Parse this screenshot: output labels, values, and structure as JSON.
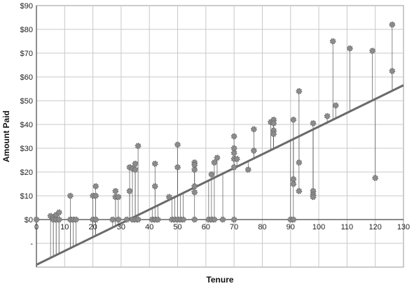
{
  "chart_data": {
    "type": "scatter",
    "title": "",
    "xlabel": "Tenure",
    "ylabel": "Amount Paid",
    "xlim": [
      0,
      130
    ],
    "ylim": [
      -20,
      90
    ],
    "x_ticks": [
      0,
      10,
      20,
      30,
      40,
      50,
      60,
      70,
      80,
      90,
      100,
      110,
      120,
      130
    ],
    "x_tick_labels": [
      "0",
      "10",
      "20",
      "30",
      "40",
      "50",
      "60",
      "70",
      "80",
      "90",
      "100",
      "110",
      "120",
      "130"
    ],
    "y_ticks": [
      -10,
      0,
      10,
      20,
      30,
      40,
      50,
      60,
      70,
      80,
      90
    ],
    "y_tick_labels": [
      "-",
      "$0",
      "$10",
      "$20",
      "$30",
      "$40",
      "$50",
      "$60",
      "$70",
      "$80",
      "$90"
    ],
    "grid": true,
    "legend": "none",
    "colors": {
      "points": "#8c8c8c",
      "trendline": "#6a6a6a",
      "residuals": "#555555",
      "grid": "#c8c8c8"
    },
    "trendline": {
      "x": [
        0,
        130
      ],
      "y": [
        -19,
        56.5
      ]
    },
    "points": [
      [
        0,
        0
      ],
      [
        5,
        1.5
      ],
      [
        6,
        1
      ],
      [
        7,
        2
      ],
      [
        8,
        3
      ],
      [
        6,
        0
      ],
      [
        7,
        0
      ],
      [
        8,
        0
      ],
      [
        12,
        0
      ],
      [
        13,
        0
      ],
      [
        12,
        10
      ],
      [
        14,
        0
      ],
      [
        20,
        0
      ],
      [
        20,
        10
      ],
      [
        21,
        10
      ],
      [
        21,
        14
      ],
      [
        21,
        0
      ],
      [
        27,
        0
      ],
      [
        28,
        12
      ],
      [
        28,
        9.5
      ],
      [
        29,
        9.5
      ],
      [
        29,
        0
      ],
      [
        32,
        0
      ],
      [
        33,
        22
      ],
      [
        33,
        12
      ],
      [
        34,
        21.5
      ],
      [
        34,
        0
      ],
      [
        35,
        23.5
      ],
      [
        35,
        21
      ],
      [
        35,
        0
      ],
      [
        36,
        31
      ],
      [
        36,
        0
      ],
      [
        41,
        0
      ],
      [
        42,
        14
      ],
      [
        42,
        23.5
      ],
      [
        42,
        0
      ],
      [
        43,
        0
      ],
      [
        47,
        9.5
      ],
      [
        48,
        0
      ],
      [
        49,
        0
      ],
      [
        50,
        22
      ],
      [
        50,
        31.5
      ],
      [
        50,
        0
      ],
      [
        51,
        0
      ],
      [
        52,
        0
      ],
      [
        56,
        24
      ],
      [
        56,
        23
      ],
      [
        56,
        21
      ],
      [
        56,
        14
      ],
      [
        56,
        11.5
      ],
      [
        56,
        0
      ],
      [
        61,
        0
      ],
      [
        62,
        19
      ],
      [
        62,
        0
      ],
      [
        63,
        24
      ],
      [
        64,
        26
      ],
      [
        63,
        0
      ],
      [
        66,
        0
      ],
      [
        70,
        35
      ],
      [
        70,
        30
      ],
      [
        70,
        28
      ],
      [
        70,
        25.5
      ],
      [
        70,
        22
      ],
      [
        71,
        25.5
      ],
      [
        70,
        0
      ],
      [
        75,
        21
      ],
      [
        77,
        38
      ],
      [
        77,
        29
      ],
      [
        83,
        41
      ],
      [
        84,
        42
      ],
      [
        84,
        40.5
      ],
      [
        84,
        37.5
      ],
      [
        84,
        36
      ],
      [
        90,
        0
      ],
      [
        91,
        0
      ],
      [
        91,
        42
      ],
      [
        91,
        17
      ],
      [
        91,
        15
      ],
      [
        93,
        54
      ],
      [
        93,
        24
      ],
      [
        93,
        12
      ],
      [
        98,
        40.5
      ],
      [
        98,
        12
      ],
      [
        98,
        10.5
      ],
      [
        98,
        9.5
      ],
      [
        103,
        43.5
      ],
      [
        105,
        75
      ],
      [
        106,
        48
      ],
      [
        111,
        72
      ],
      [
        119,
        71
      ],
      [
        120,
        17.5
      ],
      [
        126,
        82
      ],
      [
        126,
        62.5
      ]
    ]
  }
}
